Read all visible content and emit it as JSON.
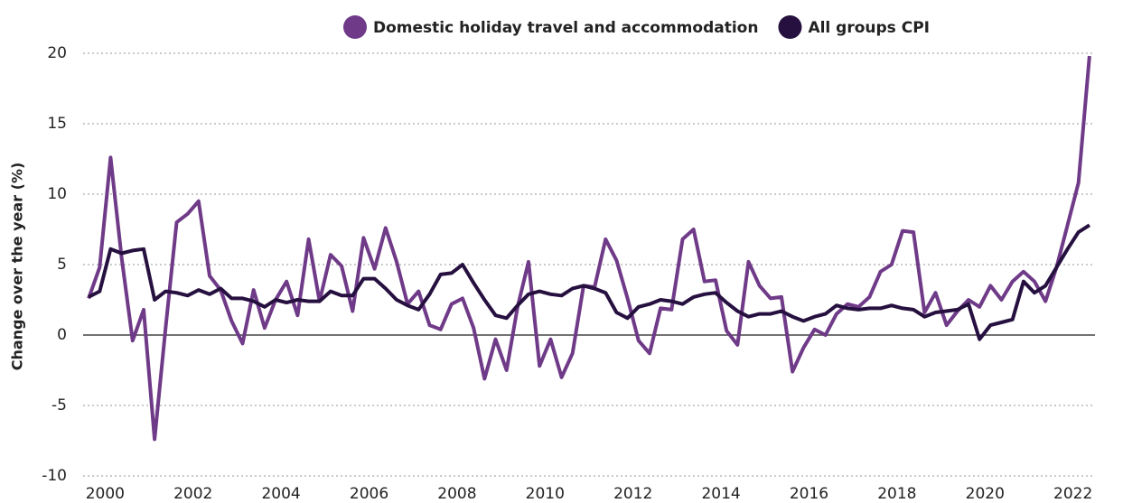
{
  "chart_data": {
    "type": "line",
    "y_label": "Change over the year (%)",
    "x": [
      1999.625,
      1999.875,
      2000.125,
      2000.375,
      2000.625,
      2000.875,
      2001.125,
      2001.375,
      2001.625,
      2001.875,
      2002.125,
      2002.375,
      2002.625,
      2002.875,
      2003.125,
      2003.375,
      2003.625,
      2003.875,
      2004.125,
      2004.375,
      2004.625,
      2004.875,
      2005.125,
      2005.375,
      2005.625,
      2005.875,
      2006.125,
      2006.375,
      2006.625,
      2006.875,
      2007.125,
      2007.375,
      2007.625,
      2007.875,
      2008.125,
      2008.375,
      2008.625,
      2008.875,
      2009.125,
      2009.375,
      2009.625,
      2009.875,
      2010.125,
      2010.375,
      2010.625,
      2010.875,
      2011.125,
      2011.375,
      2011.625,
      2011.875,
      2012.125,
      2012.375,
      2012.625,
      2012.875,
      2013.125,
      2013.375,
      2013.625,
      2013.875,
      2014.125,
      2014.375,
      2014.625,
      2014.875,
      2015.125,
      2015.375,
      2015.625,
      2015.875,
      2016.125,
      2016.375,
      2016.625,
      2016.875,
      2017.125,
      2017.375,
      2017.625,
      2017.875,
      2018.125,
      2018.375,
      2018.625,
      2018.875,
      2019.125,
      2019.375,
      2019.625,
      2019.875,
      2020.125,
      2020.375,
      2020.625,
      2020.875,
      2021.125,
      2021.375,
      2021.625,
      2021.875,
      2022.125,
      2022.375
    ],
    "series": [
      {
        "name": "Domestic holiday travel and accommodation",
        "color": "#6f3a88",
        "values": [
          2.6,
          4.8,
          12.6,
          5.5,
          -0.4,
          1.8,
          -7.4,
          0.5,
          8.0,
          8.6,
          9.5,
          4.2,
          3.2,
          1.0,
          -0.6,
          3.2,
          0.5,
          2.5,
          3.8,
          1.4,
          6.8,
          2.4,
          5.7,
          4.9,
          1.7,
          6.9,
          4.7,
          7.6,
          5.2,
          2.2,
          3.1,
          0.7,
          0.4,
          2.2,
          2.6,
          0.5,
          -3.1,
          -0.3,
          -2.5,
          2.0,
          5.2,
          -2.2,
          -0.3,
          -3.0,
          -1.3,
          3.5,
          3.4,
          6.8,
          5.3,
          2.6,
          -0.4,
          -1.3,
          1.9,
          1.8,
          6.8,
          7.5,
          3.8,
          3.9,
          0.3,
          -0.7,
          5.2,
          3.5,
          2.6,
          2.7,
          -2.6,
          -0.9,
          0.4,
          0.0,
          1.5,
          2.2,
          2.0,
          2.7,
          4.5,
          5.0,
          7.4,
          7.3,
          1.6,
          3.0,
          0.7,
          1.7,
          2.5,
          2.0,
          3.5,
          2.5,
          3.8,
          4.5,
          3.8,
          2.4,
          4.8,
          7.8,
          10.8,
          19.8
        ]
      },
      {
        "name": "All groups CPI",
        "color": "#26103f",
        "values": [
          2.7,
          3.1,
          6.1,
          5.8,
          6.0,
          6.1,
          2.5,
          3.1,
          3.0,
          2.8,
          3.2,
          2.9,
          3.3,
          2.6,
          2.6,
          2.4,
          2.0,
          2.5,
          2.3,
          2.5,
          2.4,
          2.4,
          3.1,
          2.8,
          2.8,
          4.0,
          4.0,
          3.3,
          2.5,
          2.1,
          1.8,
          2.9,
          4.3,
          4.4,
          5.0,
          3.7,
          2.5,
          1.4,
          1.2,
          2.1,
          2.9,
          3.1,
          2.9,
          2.8,
          3.3,
          3.5,
          3.3,
          3.0,
          1.6,
          1.2,
          2.0,
          2.2,
          2.5,
          2.4,
          2.2,
          2.7,
          2.9,
          3.0,
          2.3,
          1.7,
          1.3,
          1.5,
          1.5,
          1.7,
          1.3,
          1.0,
          1.3,
          1.5,
          2.1,
          1.9,
          1.8,
          1.9,
          1.9,
          2.1,
          1.9,
          1.8,
          1.3,
          1.6,
          1.7,
          1.8,
          2.2,
          -0.3,
          0.7,
          0.9,
          1.1,
          3.8,
          3.0,
          3.5,
          4.8,
          6.1,
          7.3,
          7.8
        ]
      }
    ],
    "xlim": [
      1999.5,
      2022.5
    ],
    "xticks": [
      2000,
      2002,
      2004,
      2006,
      2008,
      2010,
      2012,
      2014,
      2016,
      2018,
      2020,
      2022
    ],
    "ylim": [
      -10,
      20
    ],
    "yticks": [
      -10,
      -5,
      0,
      5,
      10,
      15,
      20
    ],
    "grid": true,
    "legend": "top"
  }
}
